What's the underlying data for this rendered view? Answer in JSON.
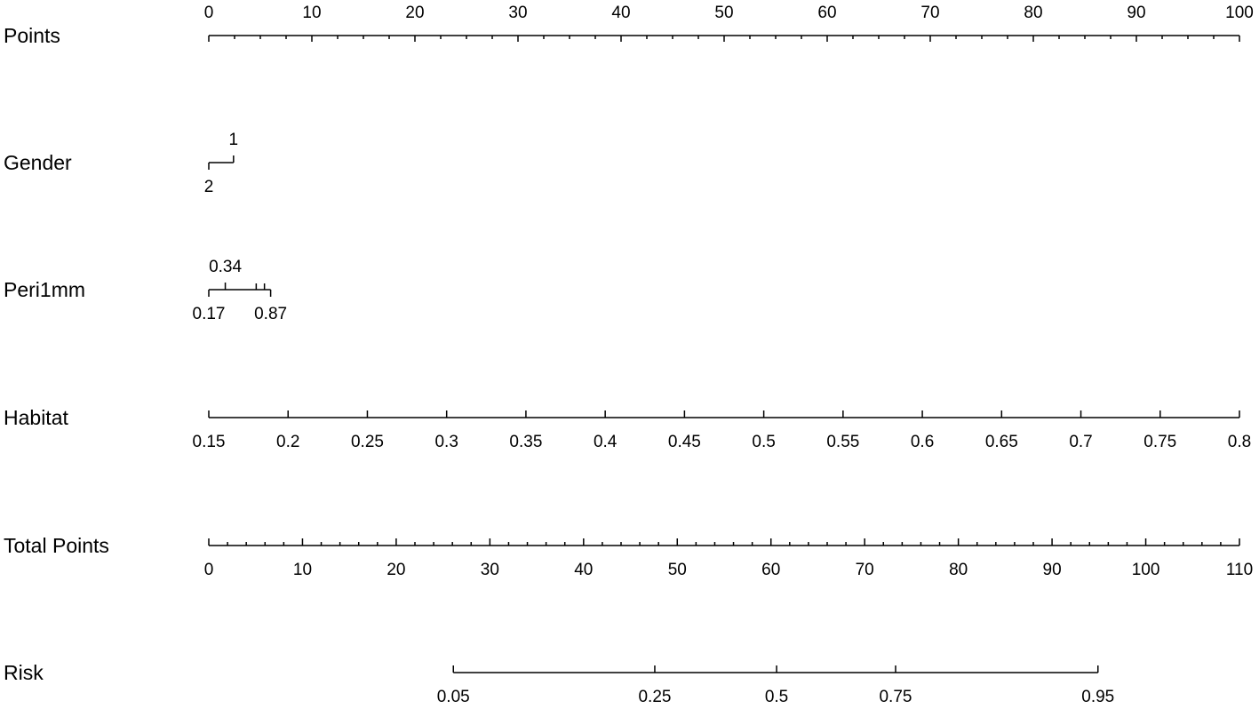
{
  "chart_data": {
    "type": "nomogram",
    "scales": [
      {
        "name": "Points",
        "ticks": [
          0,
          10,
          20,
          30,
          40,
          50,
          60,
          70,
          80,
          90,
          100
        ],
        "lim": [
          0,
          100
        ],
        "label_position": "above",
        "minor_ticks": [
          2.5,
          5,
          7.5,
          12.5,
          15,
          17.5,
          22.5,
          25,
          27.5,
          32.5,
          35,
          37.5,
          42.5,
          45,
          47.5,
          52.5,
          55,
          57.5,
          62.5,
          65,
          67.5,
          72.5,
          75,
          77.5,
          82.5,
          85,
          87.5,
          92.5,
          95,
          97.5
        ]
      },
      {
        "name": "Gender",
        "ticks": [
          2,
          1
        ],
        "points": [
          0,
          2.4
        ],
        "label_position": "alternate"
      },
      {
        "name": "Peri1mm",
        "ticks": [
          0.17,
          0.34,
          null,
          null,
          0.87
        ],
        "points": [
          0,
          1.6,
          4.6,
          5.4,
          6
        ],
        "label_position": "alternate"
      },
      {
        "name": "Habitat",
        "ticks": [
          0.15,
          0.2,
          0.25,
          0.3,
          0.35,
          0.4,
          0.45,
          0.5,
          0.55,
          0.6,
          0.65,
          0.7,
          0.75,
          0.8
        ],
        "lim": [
          0.15,
          0.8
        ],
        "points_lim": [
          0,
          100
        ],
        "label_position": "below"
      },
      {
        "name": "Total Points",
        "ticks": [
          0,
          10,
          20,
          30,
          40,
          50,
          60,
          70,
          80,
          90,
          100,
          110
        ],
        "lim": [
          0,
          110
        ],
        "label_position": "below",
        "minor_ticks": [
          2,
          4,
          6,
          8,
          12,
          14,
          16,
          18,
          22,
          24,
          26,
          28,
          32,
          34,
          36,
          38,
          42,
          44,
          46,
          48,
          52,
          54,
          56,
          58,
          62,
          64,
          66,
          68,
          72,
          74,
          76,
          78,
          82,
          84,
          86,
          88,
          92,
          94,
          96,
          98,
          102,
          104,
          106,
          108
        ]
      },
      {
        "name": "Risk",
        "ticks": [
          0.05,
          0.25,
          0.5,
          0.75,
          0.95
        ],
        "total_points": [
          26.1,
          47.6,
          60.6,
          73.3,
          94.9
        ],
        "label_position": "below"
      }
    ]
  }
}
